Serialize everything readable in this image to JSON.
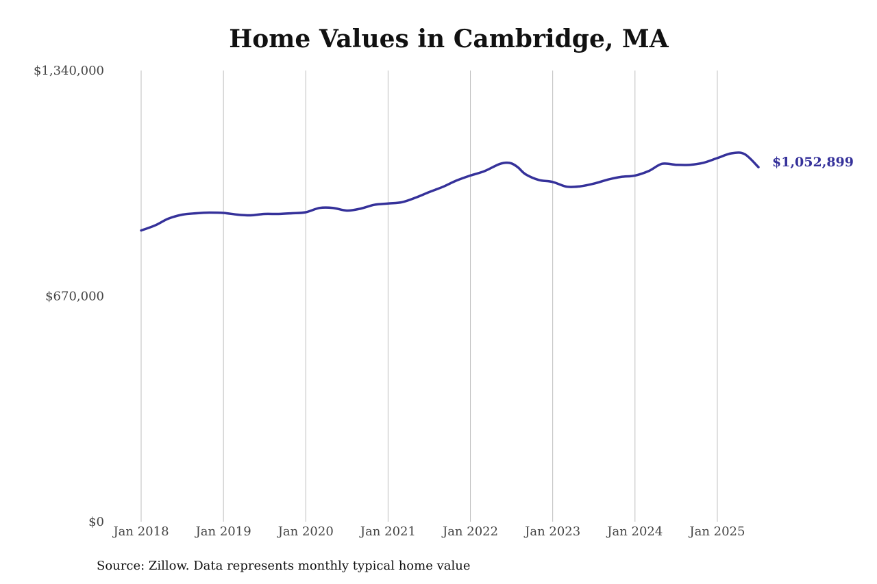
{
  "colors": {
    "line": "#35319a",
    "grid": "#bdbdbd",
    "text": "#444444"
  },
  "chart_data": {
    "type": "line",
    "title": "Home Values in Cambridge, MA",
    "xlabel": "",
    "ylabel": "",
    "ylim": [
      0,
      1340000
    ],
    "y_ticks": [
      {
        "value": 0,
        "label": "$0"
      },
      {
        "value": 670000,
        "label": "$670,000"
      },
      {
        "value": 1340000,
        "label": "$1,340,000"
      }
    ],
    "x_ticks": [
      {
        "value": 2018.0,
        "label": "Jan 2018"
      },
      {
        "value": 2019.0,
        "label": "Jan 2019"
      },
      {
        "value": 2020.0,
        "label": "Jan 2020"
      },
      {
        "value": 2021.0,
        "label": "Jan 2021"
      },
      {
        "value": 2022.0,
        "label": "Jan 2022"
      },
      {
        "value": 2023.0,
        "label": "Jan 2023"
      },
      {
        "value": 2024.0,
        "label": "Jan 2024"
      },
      {
        "value": 2025.0,
        "label": "Jan 2025"
      }
    ],
    "xlim": [
      2018.0,
      2025.5
    ],
    "grid": "vertical",
    "series": [
      {
        "x": [
          2018.0,
          2018.17,
          2018.33,
          2018.5,
          2018.67,
          2018.83,
          2019.0,
          2019.17,
          2019.33,
          2019.5,
          2019.67,
          2019.83,
          2020.0,
          2020.17,
          2020.33,
          2020.5,
          2020.67,
          2020.83,
          2021.0,
          2021.17,
          2021.33,
          2021.5,
          2021.67,
          2021.83,
          2022.0,
          2022.17,
          2022.33,
          2022.42,
          2022.5,
          2022.58,
          2022.67,
          2022.83,
          2023.0,
          2023.17,
          2023.33,
          2023.5,
          2023.67,
          2023.83,
          2024.0,
          2024.17,
          2024.33,
          2024.5,
          2024.67,
          2024.83,
          2025.0,
          2025.17,
          2025.33,
          2025.5
        ],
        "y": [
          865000,
          880000,
          900000,
          912000,
          916000,
          918000,
          917000,
          912000,
          910000,
          914000,
          914000,
          916000,
          919000,
          932000,
          932000,
          924000,
          930000,
          941000,
          945000,
          949000,
          962000,
          979000,
          995000,
          1013000,
          1028000,
          1041000,
          1060000,
          1066000,
          1064000,
          1052000,
          1032000,
          1015000,
          1009000,
          995000,
          996000,
          1004000,
          1016000,
          1024000,
          1028000,
          1042000,
          1063000,
          1060000,
          1060000,
          1066000,
          1080000,
          1094000,
          1092000,
          1052899
        ]
      }
    ],
    "end_label": "$1,052,899"
  },
  "footer": {
    "source": "Source: Zillow. Data represents monthly typical home value"
  }
}
